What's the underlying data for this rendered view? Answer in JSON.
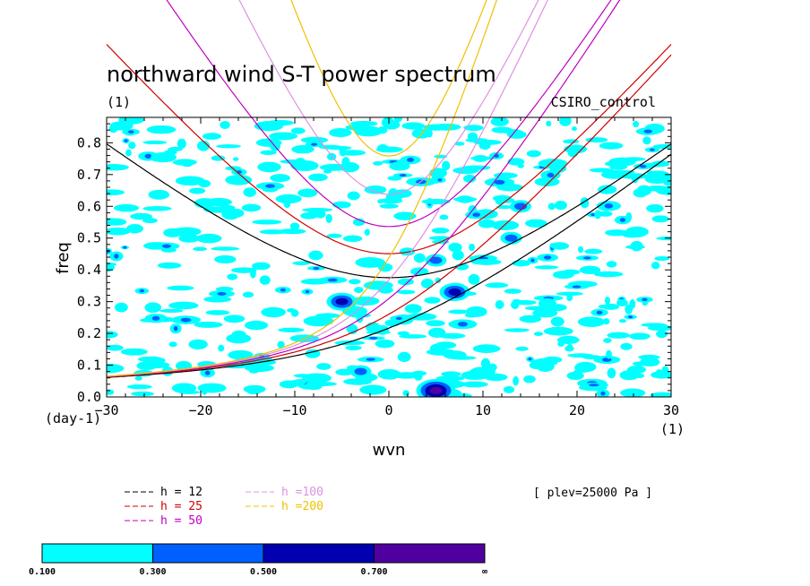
{
  "chart_data": {
    "type": "heatmap",
    "title": "northward wind S-T power spectrum",
    "subtitle_left": "(1)",
    "subtitle_right": "CSIRO_control",
    "xlabel": "wvn",
    "ylabel": "freq",
    "x_unit_label": "(1)",
    "y_unit_label": "(day-1)",
    "xlim": [
      -30,
      30
    ],
    "ylim": [
      0,
      0.88
    ],
    "xticks": [
      "-30",
      "-20",
      "-10",
      "0",
      "10",
      "20",
      "30"
    ],
    "yticks": [
      "0.0",
      "0.1",
      "0.2",
      "0.3",
      "0.4",
      "0.5",
      "0.6",
      "0.7",
      "0.8"
    ],
    "annotation": "[ plev=25000 Pa ]",
    "colorbar": {
      "levels": [
        "0.100",
        "0.300",
        "0.500",
        "0.700",
        "∞"
      ],
      "colors": [
        "#00ffff",
        "#0060ff",
        "#0000b0",
        "#5000a0"
      ]
    },
    "series": [
      {
        "name": "h = 12",
        "color": "#000000",
        "type": "dispersion-curves"
      },
      {
        "name": "h = 25",
        "color": "#d00000",
        "type": "dispersion-curves"
      },
      {
        "name": "h = 50",
        "color": "#c000c0",
        "type": "dispersion-curves"
      },
      {
        "name": "h =100",
        "color": "#e090e0",
        "type": "dispersion-curves"
      },
      {
        "name": "h =200",
        "color": "#f0c000",
        "type": "dispersion-curves"
      }
    ],
    "high_power_regions": [
      {
        "x": 5,
        "y": 0.02,
        "level": "0.700"
      },
      {
        "x": -5,
        "y": 0.3,
        "level": "0.500"
      },
      {
        "x": 7,
        "y": 0.33,
        "level": "0.500"
      },
      {
        "x": 5,
        "y": 0.43,
        "level": "0.300"
      },
      {
        "x": 13,
        "y": 0.5,
        "level": "0.300"
      },
      {
        "x": -3,
        "y": 0.08,
        "level": "0.300"
      },
      {
        "x": 14,
        "y": 0.6,
        "level": "0.300"
      }
    ]
  }
}
